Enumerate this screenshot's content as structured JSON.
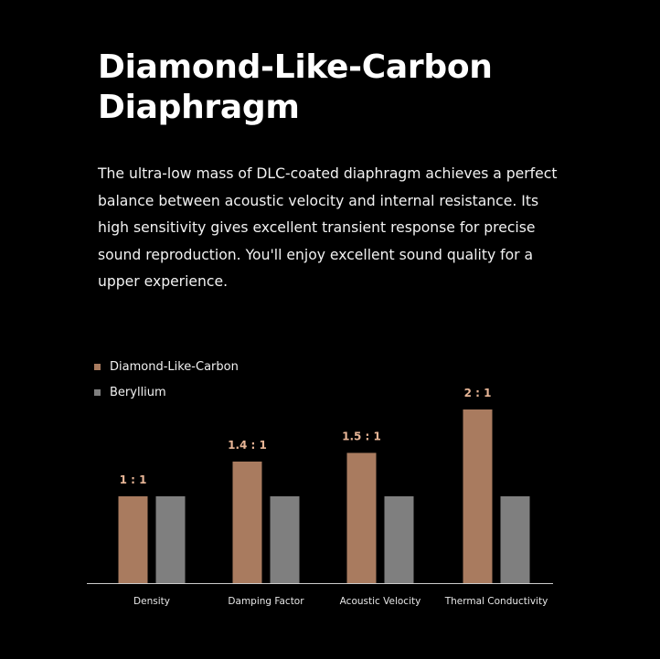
{
  "title": "Diamond-Like-Carbon Diaphragm",
  "description": "The ultra-low mass of DLC-coated diaphragm achieves a perfect balance between acoustic velocity and internal resistance. Its high sensitivity gives excellent transient response for precise sound reproduction. You'll enjoy excellent sound quality for a upper experience.",
  "chart_data": {
    "type": "bar",
    "categories": [
      "Density",
      "Damping Factor",
      "Acoustic Velocity",
      "Thermal Conductivity"
    ],
    "series": [
      {
        "name": "Diamond-Like-Carbon",
        "color": "#a97b5f",
        "values": [
          1,
          1.4,
          1.5,
          2
        ]
      },
      {
        "name": "Beryllium",
        "color": "#7f7f7f",
        "values": [
          1,
          1,
          1,
          1
        ]
      }
    ],
    "data_labels": [
      "1 : 1",
      "1.4 : 1",
      "1.5 : 1",
      "2 : 1"
    ],
    "ylim": [
      0,
      2.2
    ],
    "grid": false,
    "legend_position": "top-left",
    "axis_color": "#cccccc",
    "label_color": "#e7b596"
  }
}
